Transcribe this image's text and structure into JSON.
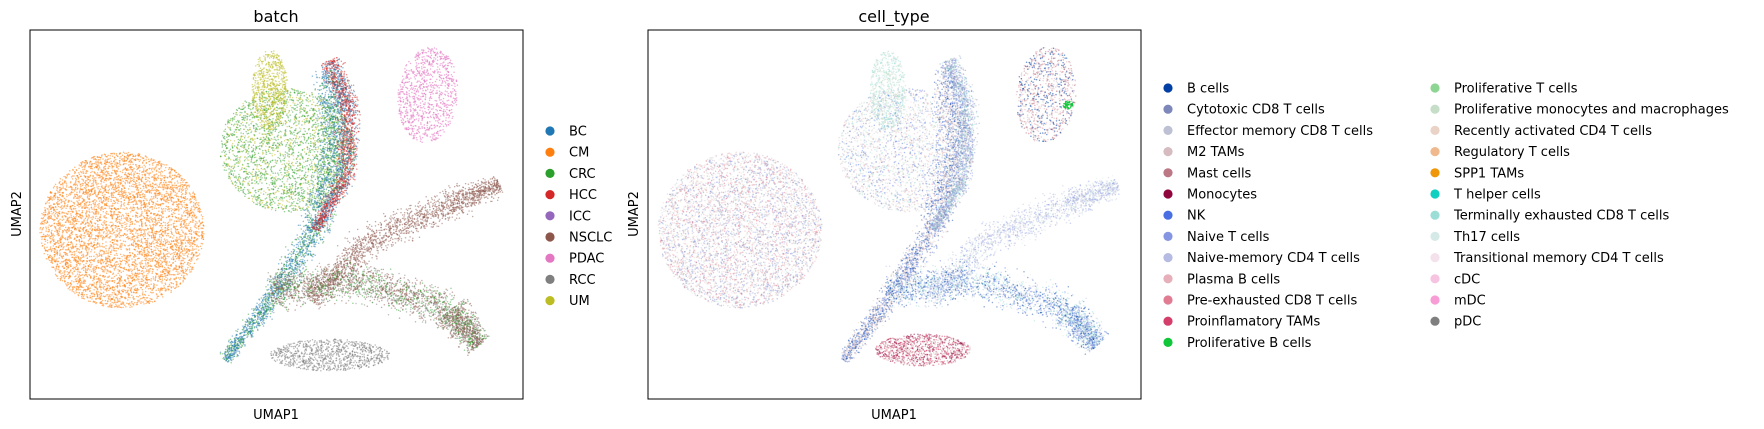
{
  "chart_data": [
    {
      "type": "scatter",
      "title": "batch",
      "xlabel": "UMAP1",
      "ylabel": "UMAP2",
      "xticks": [],
      "yticks": [],
      "legend_placement": "right",
      "legend_columns": 1,
      "categories": [
        "BC",
        "CM",
        "CRC",
        "HCC",
        "ICC",
        "NSCLC",
        "PDAC",
        "RCC",
        "UM"
      ],
      "colors": [
        "#1f77b4",
        "#ff7f0e",
        "#2ca02c",
        "#d62728",
        "#9467bd",
        "#8c564b",
        "#e377c2",
        "#7f7f7f",
        "#bcbd22"
      ]
    },
    {
      "type": "scatter",
      "title": "cell_type",
      "xlabel": "UMAP1",
      "ylabel": "UMAP2",
      "xticks": [],
      "yticks": [],
      "legend_placement": "right",
      "legend_columns": 2,
      "categories": [
        "B cells",
        "Cytotoxic CD8 T cells",
        "Effector memory CD8 T cells",
        "M2 TAMs",
        "Mast cells",
        "Monocytes",
        "NK",
        "Naive T cells",
        "Naive-memory CD4 T cells",
        "Plasma B cells",
        "Pre-exhausted CD8 T cells",
        "Proinflamatory TAMs",
        "Proliferative B cells",
        "Proliferative T cells",
        "Proliferative monocytes and macrophages",
        "Recently activated CD4 T cells",
        "Regulatory T cells",
        "SPP1 TAMs",
        "T helper cells",
        "Terminally exhausted CD8 T cells",
        "Th17 cells",
        "Transitional memory CD4 T cells",
        "cDC",
        "mDC",
        "pDC"
      ],
      "colors": [
        "#023fa5",
        "#7d87b9",
        "#bec1d4",
        "#d6bcc0",
        "#bb7784",
        "#8e063b",
        "#4a6fe3",
        "#8595e1",
        "#b5bbe3",
        "#e6afb9",
        "#e07b91",
        "#d33f6a",
        "#11c638",
        "#8dd593",
        "#c6dec7",
        "#ead3c6",
        "#f0b98d",
        "#ef9708",
        "#0fcfc0",
        "#9cded6",
        "#d5eae7",
        "#f3e1eb",
        "#f6c4e1",
        "#f79cd4",
        "#7f7f7f"
      ]
    }
  ]
}
